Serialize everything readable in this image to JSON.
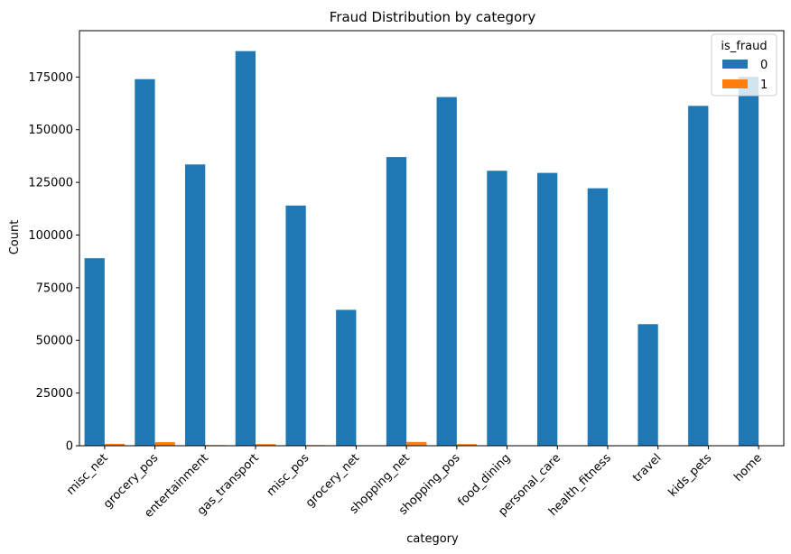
{
  "chart_data": {
    "type": "bar",
    "title": "Fraud Distribution by category",
    "xlabel": "category",
    "ylabel": "Count",
    "ylim": [
      0,
      197000
    ],
    "yticks": [
      0,
      25000,
      50000,
      75000,
      100000,
      125000,
      150000,
      175000
    ],
    "categories": [
      "misc_net",
      "grocery_pos",
      "entertainment",
      "gas_transport",
      "misc_pos",
      "grocery_net",
      "shopping_net",
      "shopping_pos",
      "food_dining",
      "personal_care",
      "health_fitness",
      "travel",
      "kids_pets",
      "home"
    ],
    "legend": {
      "title": "is_fraud",
      "position": "top-right"
    },
    "series": [
      {
        "name": "0",
        "color": "#1f77b4",
        "values": [
          89000,
          174000,
          133500,
          187300,
          114000,
          64500,
          137000,
          165500,
          130500,
          129500,
          122200,
          57700,
          161300,
          175100
        ]
      },
      {
        "name": "1",
        "color": "#ff7f0e",
        "values": [
          900,
          1700,
          300,
          800,
          300,
          100,
          1800,
          800,
          200,
          200,
          100,
          100,
          200,
          200
        ]
      }
    ],
    "grid": false
  }
}
